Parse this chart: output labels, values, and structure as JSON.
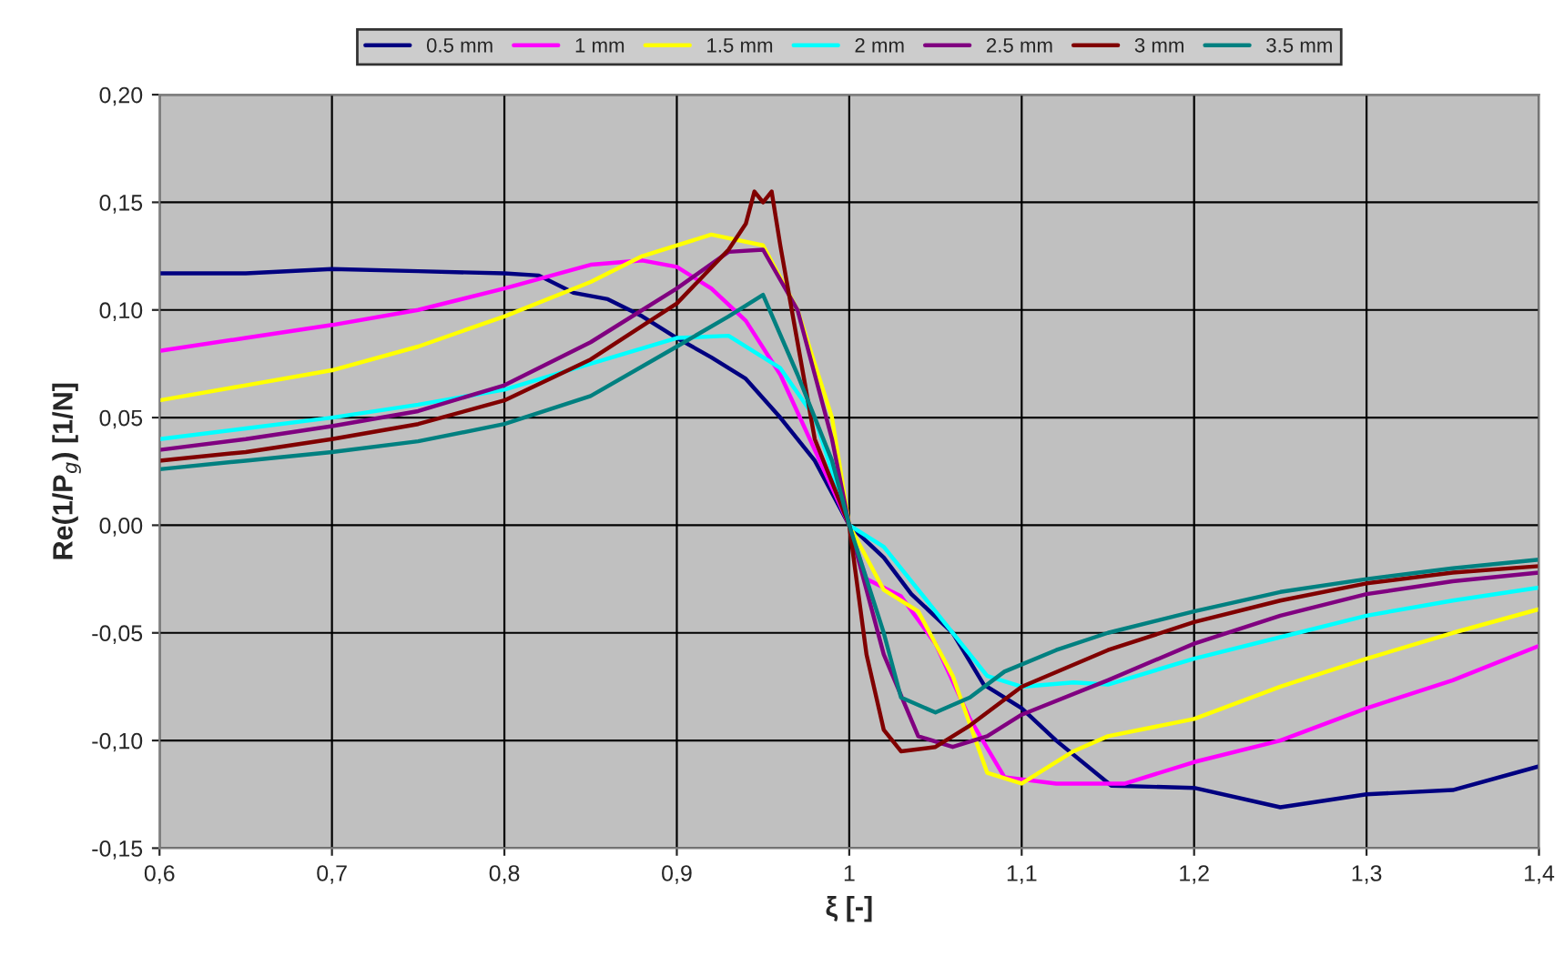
{
  "chart_data": {
    "type": "line",
    "xlabel": "ξ [-]",
    "ylabel": "Re(1/P$_{g}$) [1/N]",
    "xlim": [
      0.6,
      1.4
    ],
    "ylim": [
      -0.15,
      0.2
    ],
    "xticks": [
      {
        "value": 0.6,
        "label": "0,6"
      },
      {
        "value": 0.7,
        "label": "0,7"
      },
      {
        "value": 0.8,
        "label": "0,8"
      },
      {
        "value": 0.9,
        "label": "0,9"
      },
      {
        "value": 1,
        "label": "1"
      },
      {
        "value": 1.1,
        "label": "1,1"
      },
      {
        "value": 1.2,
        "label": "1,2"
      },
      {
        "value": 1.3,
        "label": "1,3"
      },
      {
        "value": 1.4,
        "label": "1,4"
      }
    ],
    "yticks": [
      {
        "value": -0.15,
        "label": "-0,15"
      },
      {
        "value": -0.1,
        "label": "-0,10"
      },
      {
        "value": -0.05,
        "label": "-0,05"
      },
      {
        "value": 0,
        "label": "0,00"
      },
      {
        "value": 0.05,
        "label": "0,05"
      },
      {
        "value": 0.1,
        "label": "0,10"
      },
      {
        "value": 0.15,
        "label": "0,15"
      },
      {
        "value": 0.2,
        "label": "0,20"
      }
    ],
    "grid": true,
    "legend": "top",
    "marker": "none",
    "line_style": "solid",
    "series": [
      {
        "name": "0.5 mm",
        "color": "#000080",
        "x": [
          0.6,
          0.65,
          0.7,
          0.75,
          0.8,
          0.82,
          0.84,
          0.86,
          0.88,
          0.9,
          0.92,
          0.94,
          0.96,
          0.98,
          1.0,
          1.02,
          1.036,
          1.06,
          1.078,
          1.1,
          1.12,
          1.152,
          1.2,
          1.25,
          1.3,
          1.35,
          1.4
        ],
        "values": [
          0.117,
          0.117,
          0.119,
          0.118,
          0.117,
          0.116,
          0.108,
          0.105,
          0.097,
          0.087,
          0.078,
          0.068,
          0.05,
          0.03,
          0.0,
          -0.015,
          -0.032,
          -0.05,
          -0.074,
          -0.085,
          -0.1,
          -0.121,
          -0.122,
          -0.131,
          -0.125,
          -0.123,
          -0.112
        ]
      },
      {
        "name": "1 mm",
        "color": "#ff00ff",
        "x": [
          0.6,
          0.65,
          0.7,
          0.75,
          0.8,
          0.85,
          0.88,
          0.9,
          0.92,
          0.94,
          0.96,
          0.98,
          1.0,
          1.01,
          1.03,
          1.05,
          1.07,
          1.09,
          1.12,
          1.16,
          1.2,
          1.25,
          1.3,
          1.35,
          1.4
        ],
        "values": [
          0.081,
          0.087,
          0.093,
          0.1,
          0.11,
          0.121,
          0.123,
          0.12,
          0.11,
          0.095,
          0.07,
          0.035,
          0.0,
          -0.025,
          -0.033,
          -0.055,
          -0.09,
          -0.117,
          -0.12,
          -0.12,
          -0.11,
          -0.1,
          -0.085,
          -0.072,
          -0.056
        ]
      },
      {
        "name": "1.5 mm",
        "color": "#ffff00",
        "x": [
          0.6,
          0.65,
          0.7,
          0.75,
          0.8,
          0.85,
          0.88,
          0.92,
          0.95,
          0.97,
          0.99,
          1.0,
          1.02,
          1.04,
          1.06,
          1.08,
          1.1,
          1.13,
          1.15,
          1.2,
          1.25,
          1.3,
          1.35,
          1.4
        ],
        "values": [
          0.058,
          0.065,
          0.072,
          0.083,
          0.097,
          0.113,
          0.125,
          0.135,
          0.13,
          0.1,
          0.05,
          0.0,
          -0.03,
          -0.04,
          -0.07,
          -0.115,
          -0.12,
          -0.105,
          -0.098,
          -0.09,
          -0.075,
          -0.062,
          -0.05,
          -0.039
        ]
      },
      {
        "name": "2 mm",
        "color": "#00ffff",
        "x": [
          0.6,
          0.65,
          0.7,
          0.75,
          0.8,
          0.85,
          0.9,
          0.93,
          0.96,
          0.98,
          1.0,
          1.02,
          1.05,
          1.08,
          1.1,
          1.13,
          1.15,
          1.2,
          1.25,
          1.3,
          1.35,
          1.4
        ],
        "values": [
          0.04,
          0.045,
          0.05,
          0.056,
          0.063,
          0.075,
          0.087,
          0.088,
          0.073,
          0.05,
          0.0,
          -0.01,
          -0.04,
          -0.07,
          -0.075,
          -0.073,
          -0.074,
          -0.062,
          -0.052,
          -0.042,
          -0.035,
          -0.029
        ]
      },
      {
        "name": "2.5 mm",
        "color": "#800080",
        "x": [
          0.6,
          0.65,
          0.7,
          0.75,
          0.8,
          0.85,
          0.9,
          0.93,
          0.95,
          0.97,
          0.99,
          1.0,
          1.02,
          1.04,
          1.06,
          1.08,
          1.1,
          1.15,
          1.2,
          1.25,
          1.3,
          1.35,
          1.4
        ],
        "values": [
          0.035,
          0.04,
          0.046,
          0.053,
          0.065,
          0.085,
          0.11,
          0.127,
          0.128,
          0.1,
          0.04,
          0.0,
          -0.06,
          -0.098,
          -0.103,
          -0.098,
          -0.088,
          -0.072,
          -0.055,
          -0.042,
          -0.032,
          -0.026,
          -0.022
        ]
      },
      {
        "name": "3 mm",
        "color": "#800000",
        "x": [
          0.6,
          0.65,
          0.7,
          0.75,
          0.8,
          0.85,
          0.9,
          0.93,
          0.94,
          0.945,
          0.95,
          0.955,
          0.96,
          0.97,
          0.98,
          0.99,
          1.0,
          1.01,
          1.02,
          1.03,
          1.05,
          1.07,
          1.1,
          1.15,
          1.2,
          1.25,
          1.3,
          1.35,
          1.4
        ],
        "values": [
          0.03,
          0.034,
          0.04,
          0.047,
          0.058,
          0.077,
          0.103,
          0.128,
          0.14,
          0.155,
          0.15,
          0.155,
          0.13,
          0.085,
          0.04,
          0.02,
          0.0,
          -0.06,
          -0.095,
          -0.105,
          -0.103,
          -0.093,
          -0.075,
          -0.058,
          -0.045,
          -0.035,
          -0.027,
          -0.022,
          -0.019
        ]
      },
      {
        "name": "3.5 mm",
        "color": "#008080",
        "x": [
          0.6,
          0.65,
          0.7,
          0.75,
          0.8,
          0.85,
          0.9,
          0.93,
          0.95,
          0.97,
          0.99,
          1.0,
          1.02,
          1.03,
          1.05,
          1.07,
          1.09,
          1.12,
          1.15,
          1.2,
          1.25,
          1.3,
          1.35,
          1.4
        ],
        "values": [
          0.026,
          0.03,
          0.034,
          0.039,
          0.047,
          0.06,
          0.083,
          0.097,
          0.107,
          0.07,
          0.03,
          0.0,
          -0.05,
          -0.08,
          -0.087,
          -0.08,
          -0.068,
          -0.058,
          -0.05,
          -0.04,
          -0.031,
          -0.025,
          -0.02,
          -0.016
        ]
      }
    ]
  }
}
